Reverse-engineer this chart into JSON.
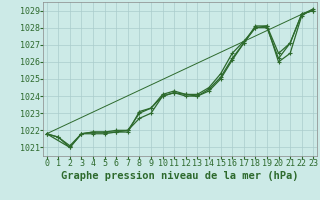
{
  "xlabel": "Graphe pression niveau de la mer (hPa)",
  "bg_color": "#cceae7",
  "line_color": "#2d6a2d",
  "grid_color": "#aacccc",
  "ylim": [
    1020.5,
    1029.5
  ],
  "xlim": [
    -0.3,
    23.3
  ],
  "yticks": [
    1021,
    1022,
    1023,
    1024,
    1025,
    1026,
    1027,
    1028,
    1029
  ],
  "xticks": [
    0,
    1,
    2,
    3,
    4,
    5,
    6,
    7,
    8,
    9,
    10,
    11,
    12,
    13,
    14,
    15,
    16,
    17,
    18,
    19,
    20,
    21,
    22,
    23
  ],
  "series": [
    {
      "x": [
        0,
        1,
        2,
        3,
        4,
        5,
        6,
        7,
        8,
        9,
        10,
        11,
        12,
        13,
        14,
        15,
        16,
        17,
        18,
        19,
        20,
        21,
        22,
        23
      ],
      "y": [
        1021.8,
        1021.6,
        1021.0,
        1021.8,
        1021.8,
        1021.8,
        1021.9,
        1021.9,
        1023.1,
        1023.3,
        1024.0,
        1024.2,
        1024.1,
        1024.0,
        1024.3,
        1025.0,
        1026.1,
        1027.1,
        1028.1,
        1028.1,
        1026.0,
        1026.5,
        1028.7,
        1029.1
      ],
      "marker": "+",
      "lw": 0.9,
      "ls": "-"
    },
    {
      "x": [
        0,
        1,
        2,
        3,
        4,
        5,
        6,
        7,
        8,
        9,
        10,
        11,
        12,
        13,
        14,
        15,
        16,
        17,
        18,
        19,
        20,
        21,
        22,
        23
      ],
      "y": [
        1021.8,
        1021.6,
        1021.1,
        1021.8,
        1021.9,
        1021.9,
        1021.9,
        1022.0,
        1022.7,
        1023.0,
        1024.0,
        1024.2,
        1024.0,
        1024.0,
        1024.4,
        1025.1,
        1026.2,
        1027.1,
        1028.0,
        1028.1,
        1026.5,
        1027.1,
        1028.8,
        1029.0
      ],
      "marker": "+",
      "lw": 0.9,
      "ls": "-"
    },
    {
      "x": [
        0,
        2,
        3,
        4,
        5,
        6,
        7,
        8,
        9,
        10,
        11,
        12,
        13,
        14,
        15,
        16,
        17,
        18,
        19,
        20,
        21,
        22,
        23
      ],
      "y": [
        1021.8,
        1021.0,
        1021.8,
        1021.9,
        1021.9,
        1022.0,
        1022.0,
        1023.0,
        1023.3,
        1024.1,
        1024.3,
        1024.1,
        1024.1,
        1024.5,
        1025.3,
        1026.5,
        1027.2,
        1028.0,
        1028.0,
        1026.2,
        1027.1,
        1028.8,
        1029.0
      ],
      "marker": "+",
      "lw": 0.9,
      "ls": "-"
    },
    {
      "x": [
        0,
        23
      ],
      "y": [
        1021.8,
        1029.1
      ],
      "marker": null,
      "lw": 0.7,
      "ls": "-"
    }
  ],
  "xlabel_fontsize": 7.5,
  "tick_fontsize": 6,
  "marker_size": 3.5
}
